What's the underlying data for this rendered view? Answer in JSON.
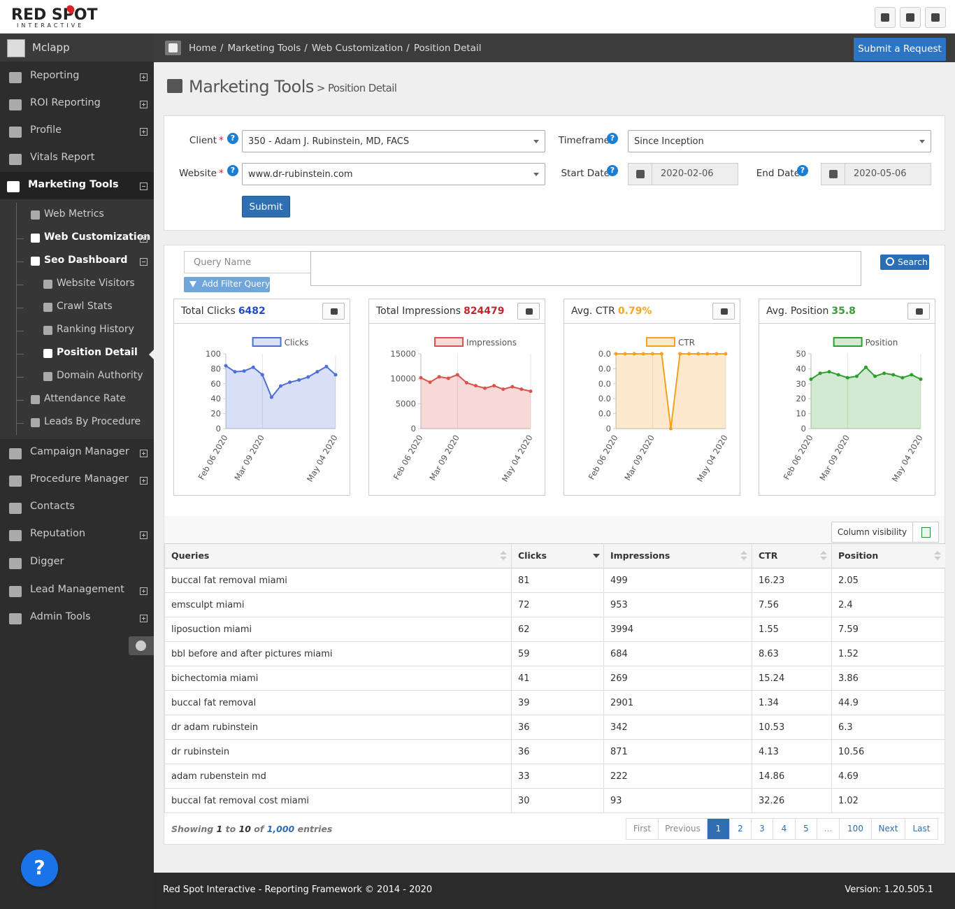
{
  "header": {
    "logo": "RED SPOT",
    "logo_sub": "INTERACTIVE"
  },
  "sidebar": {
    "user": "Mclapp",
    "menu": [
      "Reporting",
      "ROI Reporting",
      "Profile",
      "Vitals Report",
      "Marketing Tools",
      "Web Metrics",
      "Web Customization",
      "Seo Dashboard",
      "Website Visitors",
      "Crawl Stats",
      "Ranking History",
      "Position Detail",
      "Domain Authority",
      "Attendance Rate",
      "Leads By Procedure",
      "Campaign Manager",
      "Procedure Manager",
      "Contacts",
      "Reputation",
      "Digger",
      "Lead Management",
      "Admin Tools"
    ],
    "help_button": "?"
  },
  "breadcrumb": {
    "items": [
      "Home",
      "Marketing Tools",
      "Web Customization",
      "Position Detail"
    ],
    "separator": "/",
    "action": "Submit a Request"
  },
  "page_title": {
    "title": "Marketing Tools",
    "subtitle": "> Position Detail"
  },
  "filters": {
    "required": "*",
    "help": "?",
    "client_label": "Client",
    "client_value": "350 - Adam J. Rubinstein, MD, FACS",
    "website_label": "Website",
    "website_value": "www.dr-rubinstein.com",
    "timeframe_label": "Timeframe",
    "timeframe_value": "Since Inception",
    "start_label": "Start Date",
    "start_value": "2020-02-06",
    "end_label": "End Date",
    "end_value": "2020-05-06",
    "submit": "Submit"
  },
  "query": {
    "placeholder": "Query Name",
    "add_filter": "Add Filter Query",
    "search": "Search"
  },
  "chart_data": [
    {
      "type": "line",
      "title": "Total Clicks",
      "summary": 6482,
      "categories": [
        "Feb 06 2020",
        null,
        null,
        null,
        "Mar 09 2020",
        null,
        null,
        null,
        null,
        null,
        null,
        null,
        "May 04 2020"
      ],
      "series": [
        {
          "name": "Clicks",
          "color": "#4d6fd6",
          "values": [
            84,
            76,
            77,
            82,
            72,
            42,
            57,
            62,
            65,
            69,
            76,
            83,
            72
          ]
        }
      ],
      "ylim": [
        0,
        100
      ],
      "yticks": [
        0,
        20,
        40,
        60,
        80,
        100
      ]
    },
    {
      "type": "line",
      "title": "Total Impressions",
      "summary": 824479,
      "categories": [
        "Feb 06 2020",
        null,
        null,
        null,
        "Mar 09 2020",
        null,
        null,
        null,
        null,
        null,
        null,
        null,
        "May 04 2020"
      ],
      "series": [
        {
          "name": "Impressions",
          "color": "#d9534f",
          "values": [
            10200,
            9300,
            10400,
            10100,
            10800,
            9200,
            8600,
            8100,
            8600,
            7900,
            8400,
            7900,
            7500
          ]
        }
      ],
      "ylim": [
        0,
        15000
      ],
      "yticks": [
        0,
        5000,
        10000,
        15000
      ]
    },
    {
      "type": "line",
      "title": "Avg. CTR",
      "summary": "0.79%",
      "categories": [
        "Feb 06 2020",
        null,
        null,
        null,
        "Mar 09 2020",
        null,
        null,
        null,
        null,
        null,
        null,
        null,
        "May 04 2020"
      ],
      "series": [
        {
          "name": "CTR",
          "color": "#f5a020",
          "values": [
            0.01,
            0.01,
            0.01,
            0.01,
            0.01,
            0.01,
            0,
            0.01,
            0.01,
            0.01,
            0.01,
            0.01,
            0.01
          ]
        }
      ],
      "ylim": [
        0,
        0.01
      ],
      "yticks": [
        0,
        {
          "value": 0.002,
          "label": "0.0"
        },
        {
          "value": 0.004,
          "label": "0.0"
        },
        {
          "value": 0.006,
          "label": "0.0"
        },
        {
          "value": 0.008,
          "label": "0.0"
        },
        {
          "value": 0.01,
          "label": "0.0"
        }
      ]
    },
    {
      "type": "line",
      "title": "Avg. Position",
      "summary": 35.8,
      "categories": [
        "Feb 06 2020",
        null,
        null,
        null,
        "Mar 09 2020",
        null,
        null,
        null,
        null,
        null,
        null,
        null,
        "May 04 2020"
      ],
      "series": [
        {
          "name": "Position",
          "color": "#2ca02c",
          "values": [
            33,
            37,
            38,
            36,
            34,
            35,
            41,
            35,
            37,
            36,
            34,
            36,
            33
          ]
        }
      ],
      "ylim": [
        0,
        50
      ],
      "yticks": [
        0,
        10,
        20,
        30,
        40,
        50
      ]
    }
  ],
  "table": {
    "column_visibility": "Column visibility",
    "columns": [
      "Queries",
      "Clicks",
      "Impressions",
      "CTR",
      "Position"
    ],
    "rows": [
      [
        "buccal fat removal miami",
        81,
        499,
        16.23,
        2.05
      ],
      [
        "emsculpt miami",
        72,
        953,
        7.56,
        2.4
      ],
      [
        "liposuction miami",
        62,
        3994,
        1.55,
        7.59
      ],
      [
        "bbl before and after pictures miami",
        59,
        684,
        8.63,
        1.52
      ],
      [
        "bichectomia miami",
        41,
        269,
        15.24,
        3.86
      ],
      [
        "buccal fat removal",
        39,
        2901,
        1.34,
        44.9
      ],
      [
        "dr adam rubinstein",
        36,
        342,
        10.53,
        6.3
      ],
      [
        "dr rubinstein",
        36,
        871,
        4.13,
        10.56
      ],
      [
        "adam rubenstein md",
        33,
        222,
        14.86,
        4.69
      ],
      [
        "buccal fat removal cost miami",
        30,
        93,
        32.26,
        1.02
      ]
    ],
    "info": {
      "showing": "Showing",
      "from": 1,
      "to_word": "to",
      "to": 10,
      "of_word": "of",
      "total": "1,000",
      "entries": "entries"
    },
    "pagination": [
      "First",
      "Previous",
      "1",
      "2",
      "3",
      "4",
      "5",
      "…",
      "100",
      "Next",
      "Last"
    ]
  },
  "footer": {
    "text": "Red Spot Interactive - Reporting Framework © 2014 - 2020",
    "version": "Version: 1.20.505.1"
  }
}
